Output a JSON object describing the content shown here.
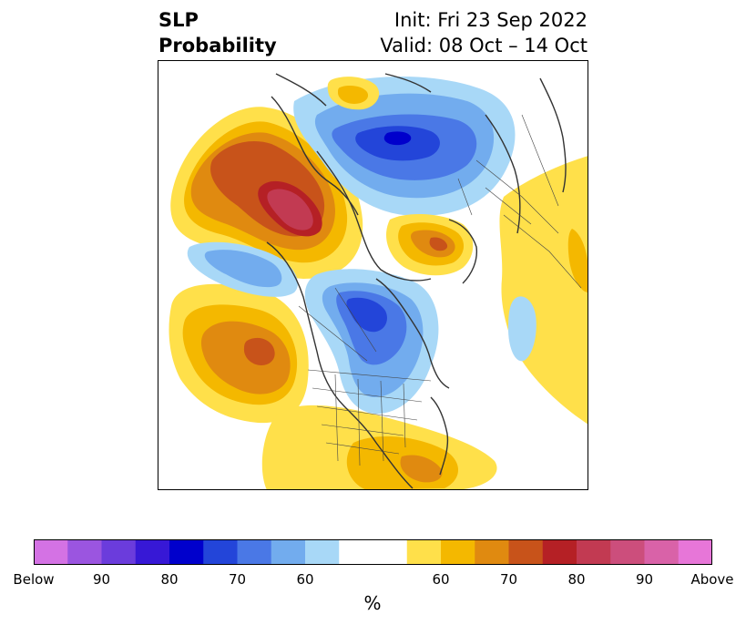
{
  "title": {
    "left_line1": "SLP",
    "left_line2": "Probability",
    "right_line1": "Init: Fri 23 Sep 2022",
    "right_line2": "Valid: 08 Oct – 14 Oct"
  },
  "colorbar": {
    "unit": "%",
    "colors": [
      "#d472e4",
      "#9b55e0",
      "#6b3cdc",
      "#3718d6",
      "#0000cc",
      "#2345d9",
      "#4a78e6",
      "#72acee",
      "#a8d8f7",
      "#ffffff",
      "#ffe04a",
      "#f4b800",
      "#e08a10",
      "#c8531a",
      "#b52025",
      "#c23a52",
      "#cc4e7c",
      "#d962a8",
      "#e776d8"
    ],
    "tick_labels": [
      "Below",
      "90",
      "80",
      "70",
      "60",
      "60",
      "70",
      "80",
      "90",
      "Above"
    ],
    "tick_boundaries": [
      0,
      2,
      4,
      6,
      8,
      11,
      13,
      15,
      17,
      19
    ]
  },
  "map": {
    "projection": "north-polar-stereographic",
    "fill_colors": {
      "below_60": "#a8d8f7",
      "below_65": "#72acee",
      "below_70": "#4a78e6",
      "below_75": "#2345d9",
      "below_80": "#0000cc",
      "above_60": "#ffe04a",
      "above_65": "#f4b800",
      "above_70": "#e08a10",
      "above_75": "#c8531a",
      "above_80": "#b52025",
      "above_85": "#c23a52"
    }
  }
}
